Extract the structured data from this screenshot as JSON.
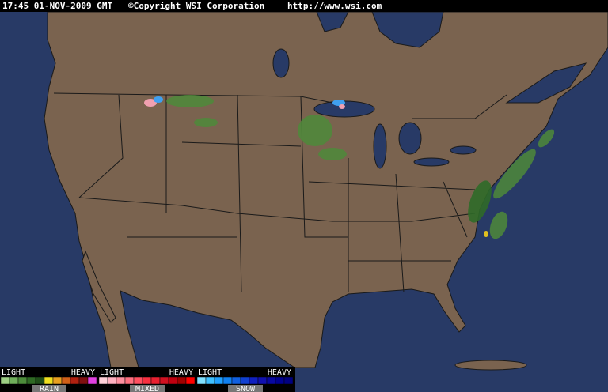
{
  "header": {
    "timestamp": "17:45 01-NOV-2009 GMT",
    "copyright": "©Copyright WSI Corporation",
    "url": "http://www.wsi.com"
  },
  "legend": [
    {
      "low": "LIGHT",
      "high": "HEAVY",
      "name": "RAIN"
    },
    {
      "low": "LIGHT",
      "high": "HEAVY",
      "name": "MIXED"
    },
    {
      "low": "LIGHT",
      "high": "HEAVY",
      "name": "SNOW"
    }
  ]
}
